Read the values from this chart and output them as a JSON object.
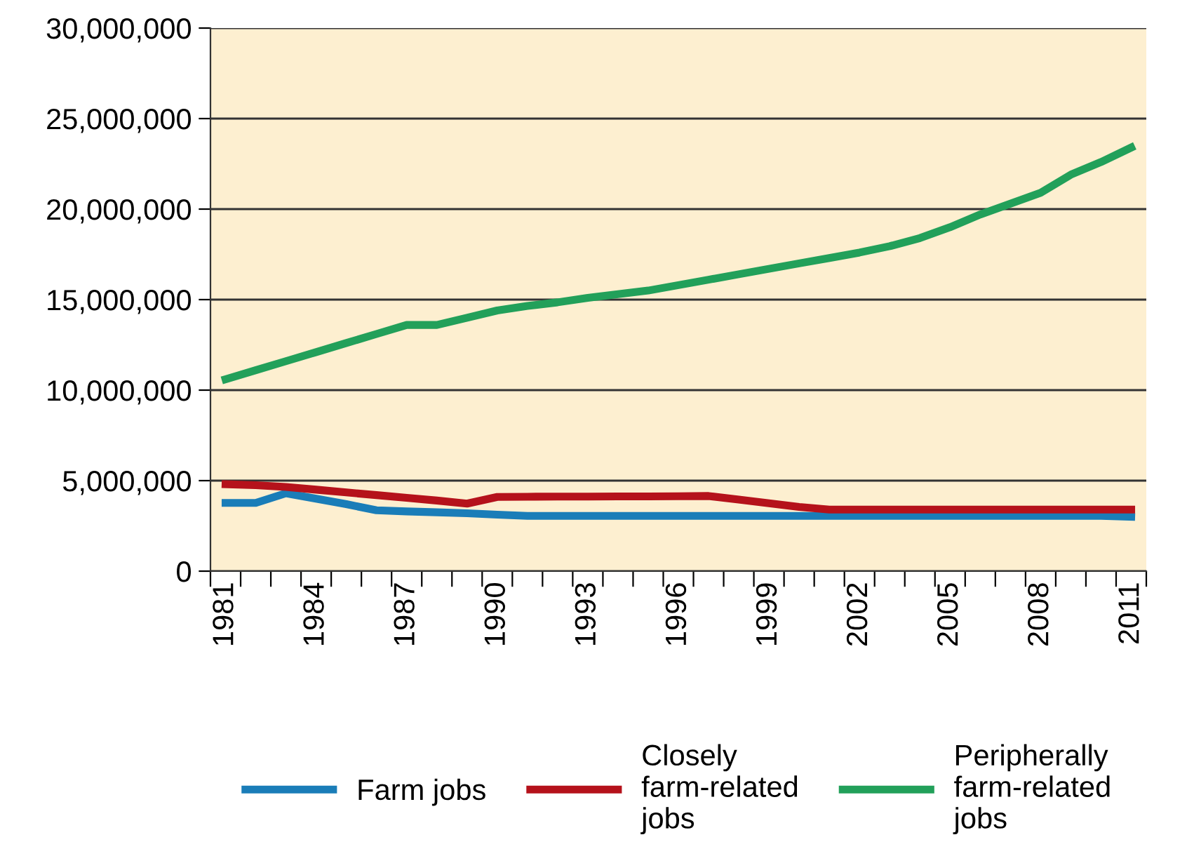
{
  "chart_data": {
    "type": "line",
    "categories": [
      "1981",
      null,
      null,
      "1984",
      null,
      null,
      "1987",
      null,
      null,
      "1990",
      null,
      null,
      "1993",
      null,
      null,
      "1996",
      null,
      null,
      "1999",
      null,
      null,
      "2002",
      null,
      null,
      "2005",
      null,
      null,
      "2008",
      null,
      null,
      "2011"
    ],
    "series": [
      {
        "name": "Farm jobs",
        "color": "#1a7db8",
        "values": [
          3770000,
          3770000,
          4300000,
          4000000,
          3700000,
          3360000,
          3300000,
          3250000,
          3200000,
          3120000,
          3050000,
          3050000,
          3050000,
          3050000,
          3050000,
          3050000,
          3050000,
          3050000,
          3050000,
          3050000,
          3050000,
          3050000,
          3050000,
          3050000,
          3050000,
          3050000,
          3050000,
          3050000,
          3050000,
          3050000,
          3000000
        ]
      },
      {
        "name": "Closely\nfarm-related\njobs",
        "color": "#b5121b",
        "values": [
          4800000,
          4750000,
          4650000,
          4500000,
          4350000,
          4200000,
          4050000,
          3900000,
          3730000,
          4100000,
          4110000,
          4120000,
          4120000,
          4130000,
          4130000,
          4140000,
          4150000,
          3950000,
          3750000,
          3550000,
          3400000,
          3400000,
          3400000,
          3400000,
          3400000,
          3400000,
          3400000,
          3400000,
          3400000,
          3400000,
          3400000
        ]
      },
      {
        "name": "Peripherally\nfarm-related\njobs",
        "color": "#22a05a",
        "values": [
          10600000,
          11100000,
          11600000,
          12100000,
          12600000,
          13100000,
          13600000,
          13600000,
          14000000,
          14400000,
          14650000,
          14850000,
          15100000,
          15300000,
          15500000,
          15800000,
          16100000,
          16400000,
          16700000,
          17000000,
          17300000,
          17600000,
          17950000,
          18400000,
          19000000,
          19700000,
          20300000,
          20900000,
          21900000,
          22600000,
          23400000
        ]
      }
    ],
    "ylim": [
      0,
      30000000
    ],
    "yticks": [
      {
        "value": 0,
        "label": "0"
      },
      {
        "value": 5000000,
        "label": "5,000,000"
      },
      {
        "value": 10000000,
        "label": "10,000,000"
      },
      {
        "value": 15000000,
        "label": "15,000,000"
      },
      {
        "value": 20000000,
        "label": "20,000,000"
      },
      {
        "value": 25000000,
        "label": "25,000,000"
      },
      {
        "value": 30000000,
        "label": "30,000,000"
      }
    ],
    "grid": "y",
    "legend": "bottom",
    "marker": "none",
    "line_style": "solid"
  }
}
